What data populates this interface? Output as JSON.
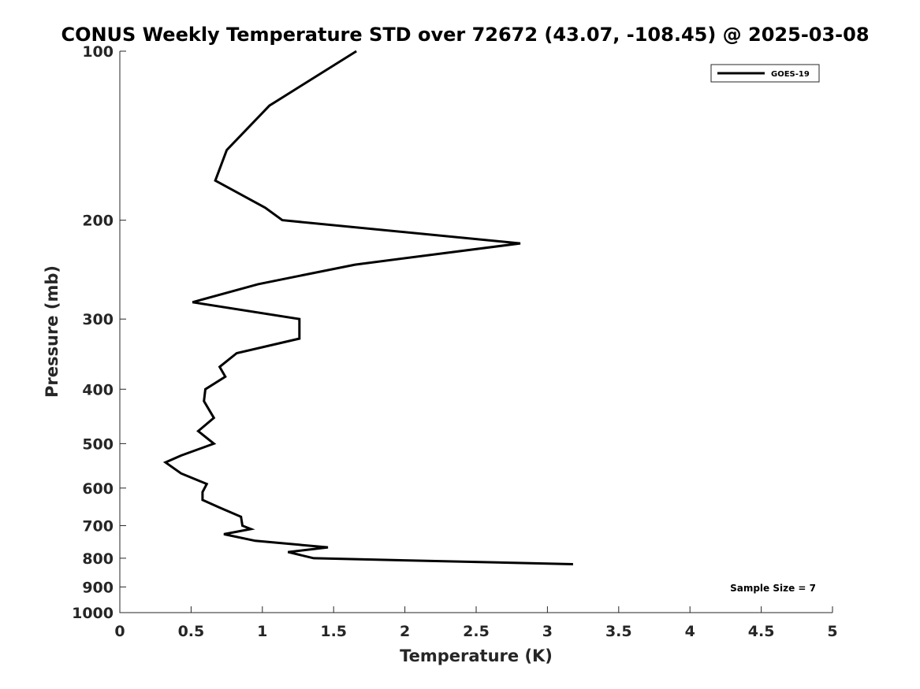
{
  "chart_data": {
    "type": "line",
    "title": "CONUS Weekly Temperature STD over 72672 (43.07, -108.45) @ 2025-03-08",
    "xlabel": "Temperature (K)",
    "ylabel": "Pressure (mb)",
    "xlim": [
      0,
      5
    ],
    "ylim": [
      100,
      1000
    ],
    "yscale": "log",
    "y_reversed": true,
    "grid": false,
    "legend_position": "top-right",
    "x_ticks": [
      {
        "value": 0,
        "label": "0"
      },
      {
        "value": 0.5,
        "label": "0.5"
      },
      {
        "value": 1,
        "label": "1"
      },
      {
        "value": 1.5,
        "label": "1.5"
      },
      {
        "value": 2,
        "label": "2"
      },
      {
        "value": 2.5,
        "label": "2.5"
      },
      {
        "value": 3,
        "label": "3"
      },
      {
        "value": 3.5,
        "label": "3.5"
      },
      {
        "value": 4,
        "label": "4"
      },
      {
        "value": 4.5,
        "label": "4.5"
      },
      {
        "value": 5,
        "label": "5"
      }
    ],
    "y_ticks": [
      {
        "value": 100,
        "label": "100"
      },
      {
        "value": 200,
        "label": "200"
      },
      {
        "value": 300,
        "label": "300"
      },
      {
        "value": 400,
        "label": "400"
      },
      {
        "value": 500,
        "label": "500"
      },
      {
        "value": 600,
        "label": "600"
      },
      {
        "value": 700,
        "label": "700"
      },
      {
        "value": 800,
        "label": "800"
      },
      {
        "value": 900,
        "label": "900"
      },
      {
        "value": 1000,
        "label": "1000"
      }
    ],
    "series": [
      {
        "name": "GOES-19",
        "color": "#000000",
        "points": [
          {
            "x": 1.66,
            "y": 100
          },
          {
            "x": 1.05,
            "y": 125
          },
          {
            "x": 0.75,
            "y": 150
          },
          {
            "x": 0.67,
            "y": 170
          },
          {
            "x": 1.02,
            "y": 190
          },
          {
            "x": 1.14,
            "y": 200
          },
          {
            "x": 2.81,
            "y": 220
          },
          {
            "x": 1.65,
            "y": 240
          },
          {
            "x": 0.97,
            "y": 260
          },
          {
            "x": 0.51,
            "y": 280
          },
          {
            "x": 1.26,
            "y": 300
          },
          {
            "x": 1.26,
            "y": 325
          },
          {
            "x": 0.82,
            "y": 345
          },
          {
            "x": 0.7,
            "y": 365
          },
          {
            "x": 0.74,
            "y": 380
          },
          {
            "x": 0.6,
            "y": 400
          },
          {
            "x": 0.59,
            "y": 420
          },
          {
            "x": 0.66,
            "y": 450
          },
          {
            "x": 0.55,
            "y": 475
          },
          {
            "x": 0.66,
            "y": 500
          },
          {
            "x": 0.43,
            "y": 525
          },
          {
            "x": 0.32,
            "y": 540
          },
          {
            "x": 0.43,
            "y": 565
          },
          {
            "x": 0.61,
            "y": 590
          },
          {
            "x": 0.58,
            "y": 610
          },
          {
            "x": 0.58,
            "y": 630
          },
          {
            "x": 0.7,
            "y": 650
          },
          {
            "x": 0.85,
            "y": 675
          },
          {
            "x": 0.86,
            "y": 700
          },
          {
            "x": 0.92,
            "y": 710
          },
          {
            "x": 0.73,
            "y": 725
          },
          {
            "x": 0.95,
            "y": 745
          },
          {
            "x": 1.46,
            "y": 765
          },
          {
            "x": 1.18,
            "y": 780
          },
          {
            "x": 1.36,
            "y": 800
          },
          {
            "x": 3.18,
            "y": 820
          }
        ]
      }
    ],
    "annotations": [
      {
        "text": "Sample Size = 7",
        "position": "bottom-right"
      }
    ]
  }
}
